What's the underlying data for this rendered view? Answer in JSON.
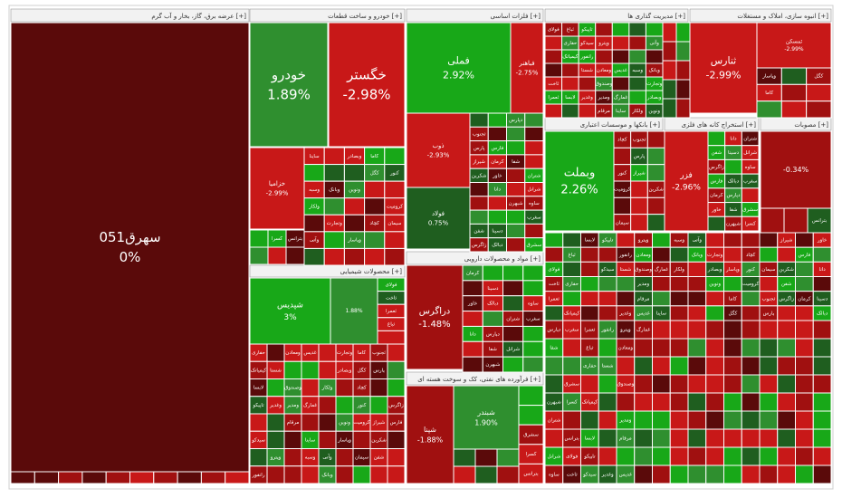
{
  "chart_data": {
    "type": "treemap",
    "colors": {
      "strong_up": "#18a818",
      "up": "#2f8f2f",
      "dark_up": "#1f5e1f",
      "flat": "#5a0a0a",
      "down": "#a01010",
      "strong_down": "#c81818",
      "bright_down": "#e02020"
    },
    "sectors": [
      {
        "name": "عرضه برق، گاز، بخار و آب گرم [+]",
        "key": "utilities"
      },
      {
        "name": "خودرو و ساخت قطعات [+]",
        "key": "auto"
      },
      {
        "name": "فلزات اساسی [+]",
        "key": "metals"
      },
      {
        "name": "محصولات شیمیایی [+]",
        "key": "chemicals"
      },
      {
        "name": "مواد و محصولات دارویی [+]",
        "key": "pharma"
      },
      {
        "name": "فرآورده های نفتی، کک و سوخت هسته ای [+]",
        "key": "petroleum"
      },
      {
        "name": "مدیریت گذاری ها [+]",
        "key": "invest"
      },
      {
        "name": "انبوه سازی، املاک و مستغلات [+]",
        "key": "realestate"
      },
      {
        "name": "بانکها و موسسات اعتباری [+]",
        "key": "banks"
      },
      {
        "name": "استخراج کانه های فلزی [+]",
        "key": "mining"
      },
      {
        "name": "مصوبات [+]",
        "key": "misc"
      }
    ],
    "tiles": [
      {
        "name": "سهرق051",
        "change": "0%"
      },
      {
        "name": "خودرو",
        "change": "1.89%"
      },
      {
        "name": "خگستر",
        "change": "-2.98%"
      },
      {
        "name": "خزامیا",
        "change": "-2.99%"
      },
      {
        "name": "فملی",
        "change": "2.92%"
      },
      {
        "name": "فباهنر",
        "change": "-2.75%"
      },
      {
        "name": "ذوب",
        "change": "-2.93%"
      },
      {
        "name": "فولاد",
        "change": "0.75%"
      },
      {
        "name": "شپدیس",
        "change": "3%"
      },
      {
        "name": "",
        "change": "1.88%"
      },
      {
        "name": "دراگرس",
        "change": "-1.48%"
      },
      {
        "name": "شپنا",
        "change": "-1.88%"
      },
      {
        "name": "شبندر",
        "change": "1.90%"
      },
      {
        "name": "ثمسکن",
        "change": "-2.99%"
      },
      {
        "name": "ثنارس",
        "change": "-2.99%"
      },
      {
        "name": "",
        "change": "-3.8%"
      },
      {
        "name": "وبملت",
        "change": "2.26%"
      },
      {
        "name": "فزر",
        "change": "-2.96%"
      },
      {
        "name": "",
        "change": "-0.34%"
      }
    ],
    "labels": [
      "ساینا",
      "وسبه",
      "ولکار",
      "وآتی",
      "وبانک",
      "وتجارت",
      "وبصادر",
      "ونوین",
      "وپاسار",
      "کاما",
      "کگل",
      "کچاد",
      "کنور",
      "کرومیت",
      "سیمان",
      "ثجنوب",
      "پارس",
      "شیراز",
      "شکربن",
      "شفن",
      "زاگرس",
      "فارس",
      "کرمان",
      "خاور",
      "دانا",
      "دسینا",
      "دبالک",
      "دپارس",
      "شفا",
      "شبهرن",
      "شتران",
      "شرانل",
      "ساوه",
      "سغرب",
      "سشرق",
      "کسرا",
      "بترانس",
      "فولای",
      "ثاخت",
      "ثعمرا",
      "ثباغ",
      "حفاری",
      "کیمیاتک",
      "لابسا",
      "تاپیکو",
      "سیدکو",
      "رانفور",
      "شستا",
      "وغدیر",
      "وپترو",
      "ومعادن",
      "وصندوق",
      "ومدیر",
      "مرقام",
      "غدیس",
      "غمارگ"
    ]
  }
}
